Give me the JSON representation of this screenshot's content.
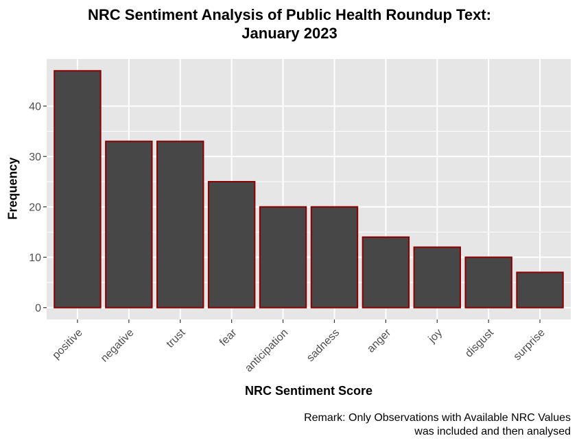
{
  "chart_data": {
    "type": "bar",
    "title": [
      "NRC Sentiment Analysis of Public Health Roundup Text:",
      "January 2023"
    ],
    "xlabel": "NRC Sentiment Score",
    "ylabel": "Frequency",
    "caption": [
      "Remark: Only Observations with Available NRC Values",
      "was included and then analysed"
    ],
    "categories": [
      "positive",
      "negative",
      "trust",
      "fear",
      "anticipation",
      "sadness",
      "anger",
      "joy",
      "disgust",
      "surprise"
    ],
    "values": [
      47,
      33,
      33,
      25,
      20,
      20,
      14,
      12,
      10,
      7
    ],
    "yticks": [
      0,
      10,
      20,
      30,
      40
    ],
    "ylim": [
      -2.35,
      49.35
    ],
    "grid": true,
    "legend": "none",
    "colors": {
      "bar_fill": "#474747",
      "bar_stroke": "#8B0000",
      "panel": "#E6E6E6",
      "grid": "#FFFFFF",
      "tick_text": "#4D4D4D"
    }
  }
}
